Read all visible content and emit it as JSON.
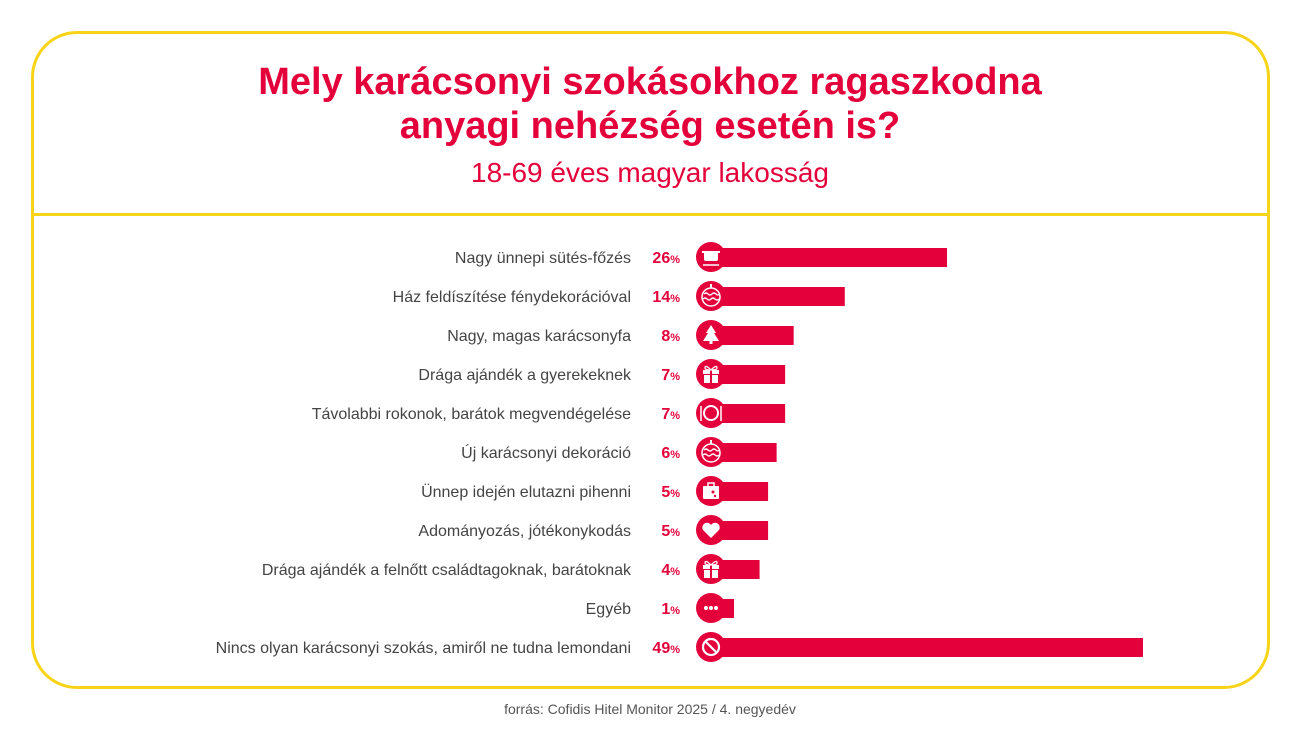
{
  "header": {
    "title_line1": "Mely karácsonyi szokásokhoz ragaszkodna",
    "title_line2": "anyagi nehézség esetén is?",
    "subtitle": "18-69 éves magyar lakosság"
  },
  "source": "forrás: Cofidis Hitel Monitor 2025 / 4. negyedév",
  "colors": {
    "accent": "#e4003b",
    "frame": "#f7d417",
    "label": "#444444"
  },
  "chart_data": {
    "type": "bar",
    "orientation": "horizontal",
    "unit": "%",
    "categories": [
      "Nagy ünnepi sütés-főzés",
      "Ház feldíszítése fénydekorációval",
      "Nagy, magas karácsonyfa",
      "Drága ajándék a gyerekeknek",
      "Távolabbi rokonok, barátok megvendégelése",
      "Új karácsonyi dekoráció",
      "Ünnep idején elutazni pihenni",
      "Adományozás, jótékonykodás",
      "Drága ajándék a felnőtt családtagoknak, barátoknak",
      "Egyéb",
      "Nincs olyan karácsonyi szokás, amiről ne tudna lemondani"
    ],
    "values": [
      26,
      14,
      8,
      7,
      7,
      6,
      5,
      5,
      4,
      1,
      49
    ],
    "icons": [
      "cooking-pot-icon",
      "ornament-icon",
      "christmas-tree-icon",
      "gift-icon",
      "dinner-plate-icon",
      "ornament-icon",
      "suitcase-icon",
      "heart-icon",
      "gift-icon",
      "ellipsis-icon",
      "prohibited-icon"
    ]
  }
}
